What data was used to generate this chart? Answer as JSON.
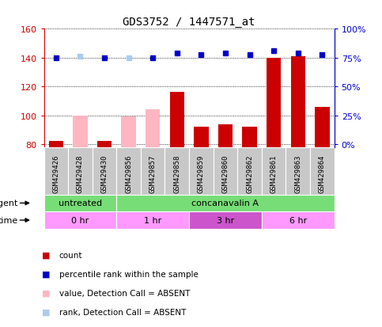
{
  "title": "GDS3752 / 1447571_at",
  "samples": [
    "GSM429426",
    "GSM429428",
    "GSM429430",
    "GSM429856",
    "GSM429857",
    "GSM429858",
    "GSM429859",
    "GSM429860",
    "GSM429862",
    "GSM429861",
    "GSM429863",
    "GSM429864"
  ],
  "ylim_left": [
    78,
    160
  ],
  "yticks_left": [
    80,
    100,
    120,
    140,
    160
  ],
  "ytick_labels_right": [
    "0%",
    "25%",
    "50%",
    "75%",
    "100%"
  ],
  "right_tick_positions": [
    80,
    100,
    120,
    140,
    160
  ],
  "red_bars": [
    82,
    null,
    82,
    null,
    null,
    116,
    92,
    94,
    92,
    140,
    141,
    106
  ],
  "pink_bars": [
    null,
    100,
    null,
    99,
    104,
    null,
    null,
    null,
    null,
    null,
    null,
    null
  ],
  "blue_dots": [
    140,
    null,
    140,
    null,
    140,
    143,
    142,
    143,
    142,
    145,
    143,
    142
  ],
  "lightblue_dots": [
    null,
    141,
    null,
    140,
    null,
    null,
    null,
    null,
    null,
    null,
    null,
    null
  ],
  "agent_groups": [
    {
      "label": "untreated",
      "start": 0,
      "end": 3
    },
    {
      "label": "concanavalin A",
      "start": 3,
      "end": 12
    }
  ],
  "time_groups": [
    {
      "label": "0 hr",
      "start": 0,
      "end": 3,
      "dark": false
    },
    {
      "label": "1 hr",
      "start": 3,
      "end": 6,
      "dark": false
    },
    {
      "label": "3 hr",
      "start": 6,
      "end": 9,
      "dark": true
    },
    {
      "label": "6 hr",
      "start": 9,
      "end": 12,
      "dark": false
    }
  ],
  "legend_items": [
    {
      "label": "count",
      "color": "#CC0000"
    },
    {
      "label": "percentile rank within the sample",
      "color": "#0000CC"
    },
    {
      "label": "value, Detection Call = ABSENT",
      "color": "#FFB6C1"
    },
    {
      "label": "rank, Detection Call = ABSENT",
      "color": "#AACCEE"
    }
  ],
  "bar_width": 0.6,
  "red_color": "#CC0000",
  "pink_color": "#FFB6C1",
  "blue_color": "#0000CC",
  "lightblue_color": "#AACCEE",
  "agent_color": "#77DD77",
  "time_light_color": "#FF99FF",
  "time_dark_color": "#CC55CC",
  "label_bg_color": "#C8C8C8",
  "bg_color": "#FFFFFF"
}
